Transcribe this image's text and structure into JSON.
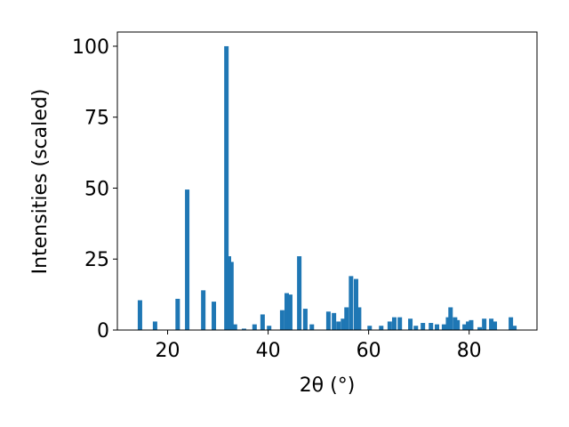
{
  "chart_data": {
    "type": "bar",
    "xlabel": "2θ (°)",
    "ylabel": "Intensities (scaled)",
    "color": "#1f77b4",
    "x": [
      14.5,
      17.5,
      22.0,
      23.9,
      27.1,
      29.2,
      31.7,
      32.2,
      32.7,
      33.4,
      35.2,
      37.3,
      38.9,
      40.2,
      42.8,
      43.7,
      44.4,
      46.2,
      47.4,
      48.7,
      52.0,
      53.1,
      54.0,
      54.9,
      55.6,
      56.5,
      57.5,
      58.1,
      60.2,
      62.5,
      64.2,
      65.1,
      66.2,
      68.3,
      69.4,
      70.8,
      72.4,
      73.6,
      75.0,
      75.8,
      76.3,
      77.2,
      77.7,
      79.1,
      79.8,
      80.4,
      82.1,
      83.0,
      84.4,
      85.1,
      88.3,
      89.0
    ],
    "values": [
      10.5,
      3,
      11,
      49.5,
      14,
      10,
      100,
      26,
      24,
      2,
      0.5,
      2,
      5.5,
      1.5,
      7,
      13,
      12.5,
      26,
      7.5,
      2,
      6.5,
      6,
      3,
      4,
      8,
      19,
      18,
      8,
      1.5,
      1.5,
      3,
      4.5,
      4.5,
      4,
      1.5,
      2.5,
      2.5,
      2,
      2,
      4.5,
      8,
      4.5,
      3.5,
      2,
      3,
      3.5,
      1,
      4,
      4,
      3,
      4.5,
      1.5
    ],
    "xlim": [
      10,
      93.5
    ],
    "ylim": [
      0,
      105
    ],
    "xticks": [
      20,
      40,
      60,
      80
    ],
    "yticks": [
      0,
      25,
      50,
      75,
      100
    ]
  }
}
